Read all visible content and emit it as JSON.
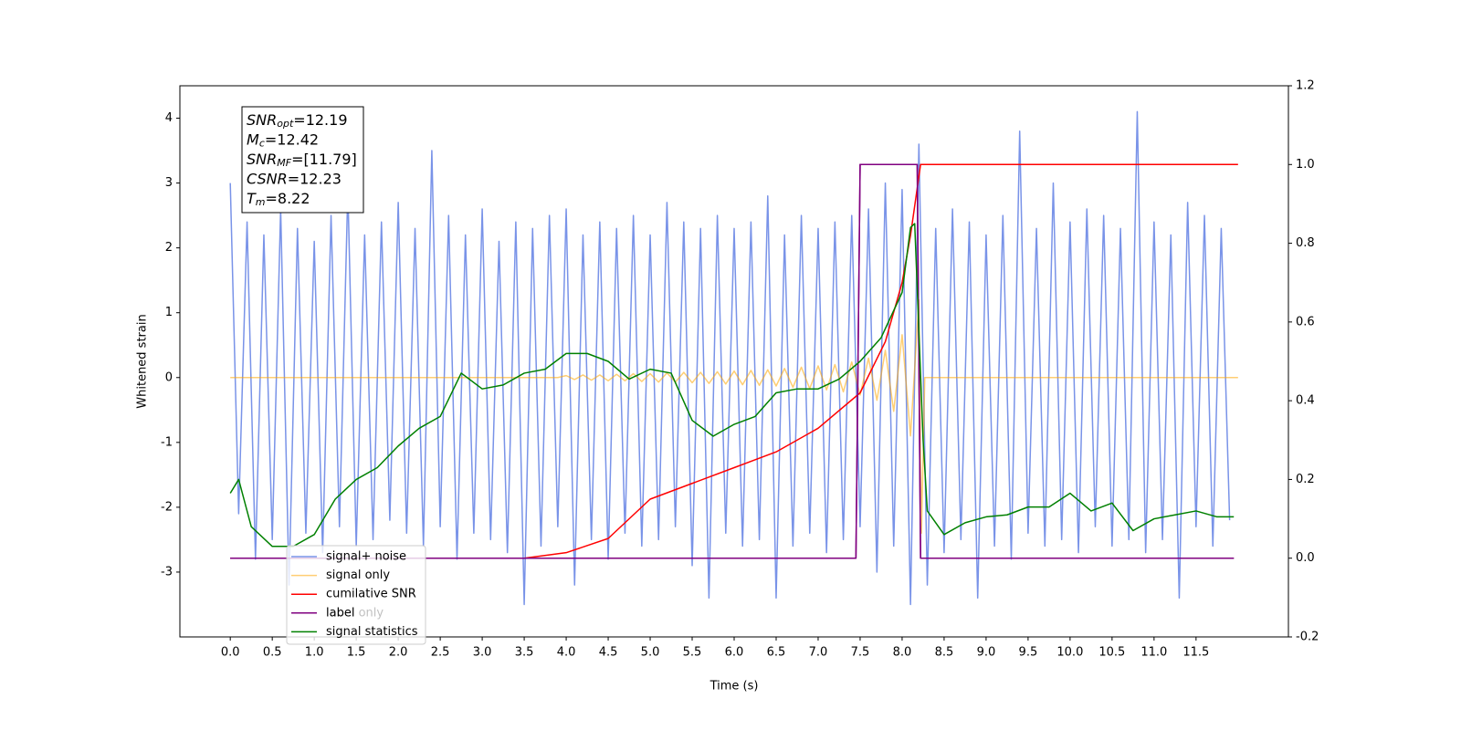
{
  "chart_data": {
    "type": "line",
    "xlabel": "Time (s)",
    "ylabel": "Whitened strain",
    "xlim": [
      -0.6,
      12.6
    ],
    "ylim": [
      -4,
      4.5
    ],
    "y2lim": [
      -0.2,
      1.2
    ],
    "xticks": [
      {
        "value": 0,
        "label": "0.0"
      },
      0.5,
      {
        "value": 1,
        "label": "1.0"
      },
      1.5,
      {
        "value": 2,
        "label": "2.0"
      },
      2.5,
      {
        "value": 3,
        "label": "3.0"
      },
      3.5,
      {
        "value": 4,
        "label": "4.0"
      },
      4.5,
      {
        "value": 5,
        "label": "5.0"
      },
      5.5,
      {
        "value": 6,
        "label": "6.0"
      },
      6.5,
      {
        "value": 7,
        "label": "7.0"
      },
      7.5,
      {
        "value": 8,
        "label": "8.0"
      },
      8.5,
      {
        "value": 9,
        "label": "9.0"
      },
      9.5,
      {
        "value": 10,
        "label": "10.0"
      },
      10.5,
      {
        "value": 11,
        "label": "11.0"
      },
      11.5
    ],
    "yticks": [
      -3,
      -2,
      -1,
      0,
      1,
      2,
      3,
      4
    ],
    "y2ticks": [
      -0.2,
      {
        "value": 0,
        "label": "0.0"
      },
      0.2,
      0.4,
      0.6,
      0.8,
      {
        "value": 1,
        "label": "1.0"
      },
      1.2
    ],
    "legend": "lower left",
    "annotations": [
      {
        "base": "SNR",
        "sub": "opt",
        "text": "=12.19"
      },
      {
        "base": "M",
        "sub": "c",
        "text": "=12.42"
      },
      {
        "base": "SNR",
        "sub": "MF",
        "text": "=[11.79]"
      },
      {
        "base": "CSNR",
        "sub": null,
        "text": "=12.23"
      },
      {
        "base": "T",
        "sub": "m",
        "text": "=8.22"
      }
    ],
    "series": [
      {
        "name": "signal+ noise",
        "color": "#6a87e6",
        "axis": "y",
        "x": [
          0,
          0.1,
          0.2,
          0.3,
          0.4,
          0.5,
          0.6,
          0.7,
          0.8,
          0.9,
          1,
          1.1,
          1.2,
          1.3,
          1.4,
          1.5,
          1.6,
          1.7,
          1.8,
          1.9,
          2,
          2.1,
          2.2,
          2.3,
          2.4,
          2.5,
          2.6,
          2.7,
          2.8,
          2.9,
          3,
          3.1,
          3.2,
          3.3,
          3.4,
          3.5,
          3.6,
          3.7,
          3.8,
          3.9,
          4,
          4.1,
          4.2,
          4.3,
          4.4,
          4.5,
          4.6,
          4.7,
          4.8,
          4.9,
          5,
          5.1,
          5.2,
          5.3,
          5.4,
          5.5,
          5.6,
          5.7,
          5.8,
          5.9,
          6,
          6.1,
          6.2,
          6.3,
          6.4,
          6.5,
          6.6,
          6.7,
          6.8,
          6.9,
          7,
          7.1,
          7.2,
          7.3,
          7.4,
          7.5,
          7.6,
          7.7,
          7.8,
          7.9,
          8,
          8.1,
          8.2,
          8.3,
          8.4,
          8.5,
          8.6,
          8.7,
          8.8,
          8.9,
          9,
          9.1,
          9.2,
          9.3,
          9.4,
          9.5,
          9.6,
          9.7,
          9.8,
          9.9,
          10,
          10.1,
          10.2,
          10.3,
          10.4,
          10.5,
          10.6,
          10.7,
          10.8,
          10.9,
          11,
          11.1,
          11.2,
          11.3,
          11.4,
          11.5,
          11.6,
          11.7,
          11.8,
          11.9
        ],
        "values": [
          3.0,
          -2.1,
          2.4,
          -2.8,
          2.2,
          -2.5,
          2.6,
          -3.2,
          2.3,
          -2.4,
          2.1,
          -2.7,
          2.5,
          -2.3,
          2.9,
          -2.6,
          2.2,
          -2.5,
          2.4,
          -2.2,
          2.7,
          -2.4,
          2.3,
          -2.6,
          3.5,
          -2.3,
          2.5,
          -2.8,
          2.2,
          -2.4,
          2.6,
          -2.5,
          2.1,
          -2.7,
          2.4,
          -3.5,
          2.3,
          -2.6,
          2.5,
          -2.3,
          2.6,
          -3.2,
          2.2,
          -2.5,
          2.4,
          -2.8,
          2.3,
          -2.4,
          2.5,
          -2.6,
          2.2,
          -2.5,
          2.7,
          -2.3,
          2.4,
          -2.9,
          2.3,
          -3.4,
          2.5,
          -2.4,
          2.3,
          -2.6,
          2.4,
          -2.5,
          2.8,
          -3.4,
          2.2,
          -2.6,
          2.5,
          -2.4,
          2.3,
          -2.7,
          2.4,
          -2.5,
          2.5,
          -2.3,
          2.6,
          -3.0,
          3.0,
          -2.6,
          2.9,
          -3.5,
          3.6,
          -3.2,
          2.3,
          -2.7,
          2.6,
          -2.5,
          2.4,
          -3.4,
          2.2,
          -2.6,
          2.5,
          -2.8,
          3.8,
          -2.4,
          2.3,
          -2.6,
          3.0,
          -2.5,
          2.4,
          -2.7,
          2.6,
          -2.3,
          2.5,
          -2.6,
          2.3,
          -2.5,
          4.1,
          -2.7,
          2.4,
          -2.5,
          2.2,
          -3.4,
          2.7,
          -2.3,
          2.5,
          -2.6,
          2.3,
          -2.2
        ]
      },
      {
        "name": "signal only",
        "color": "#ffa500",
        "axis": "y",
        "x": [
          0,
          3.9,
          4,
          4.1,
          4.2,
          4.3,
          4.4,
          4.5,
          4.6,
          4.7,
          4.8,
          4.9,
          5,
          5.1,
          5.2,
          5.3,
          5.4,
          5.5,
          5.6,
          5.7,
          5.8,
          5.9,
          6,
          6.1,
          6.2,
          6.3,
          6.4,
          6.5,
          6.6,
          6.7,
          6.8,
          6.9,
          7,
          7.1,
          7.2,
          7.3,
          7.4,
          7.5,
          7.6,
          7.7,
          7.8,
          7.9,
          8,
          8.1,
          8.2,
          8.23,
          8.27,
          12
        ],
        "values": [
          0,
          0,
          0.03,
          -0.03,
          0.04,
          -0.04,
          0.04,
          -0.05,
          0.05,
          -0.05,
          0.06,
          -0.06,
          0.06,
          -0.07,
          0.07,
          -0.07,
          0.08,
          -0.08,
          0.08,
          -0.09,
          0.09,
          -0.1,
          0.1,
          -0.11,
          0.11,
          -0.12,
          0.12,
          -0.13,
          0.14,
          -0.15,
          0.16,
          -0.17,
          0.18,
          -0.19,
          0.2,
          -0.22,
          0.24,
          -0.27,
          0.3,
          -0.35,
          0.42,
          -0.52,
          0.66,
          -0.9,
          1.2,
          -2.4,
          0,
          0
        ]
      },
      {
        "name": "cumilative SNR",
        "color": "#ff0000",
        "axis": "y2",
        "x": [
          0,
          3.5,
          4,
          4.5,
          5,
          5.5,
          6,
          6.5,
          7,
          7.5,
          7.8,
          8,
          8.1,
          8.2,
          8.22,
          12
        ],
        "values": [
          0,
          0,
          0.014,
          0.05,
          0.15,
          0.19,
          0.23,
          0.27,
          0.33,
          0.42,
          0.55,
          0.7,
          0.82,
          0.97,
          1,
          1
        ]
      },
      {
        "name": "label",
        "color": "#800080",
        "axis": "y2",
        "x": [
          0,
          7.45,
          7.5,
          8.18,
          8.22,
          11.95
        ],
        "values": [
          0,
          0,
          1,
          1,
          0,
          0
        ]
      },
      {
        "name": "label only",
        "color": "#800080",
        "axis": "y2",
        "x": [
          0,
          7.45,
          7.5,
          8.18,
          8.22,
          11.95
        ],
        "values": [
          0,
          0,
          1,
          1,
          0,
          0
        ]
      },
      {
        "name": "signal statistics",
        "color": "#008000",
        "axis": "y2",
        "x": [
          0,
          0.1,
          0.25,
          0.5,
          0.75,
          1,
          1.25,
          1.5,
          1.75,
          2,
          2.25,
          2.5,
          2.75,
          3,
          3.25,
          3.5,
          3.75,
          4,
          4.25,
          4.5,
          4.75,
          5,
          5.25,
          5.5,
          5.75,
          6,
          6.25,
          6.5,
          6.75,
          7,
          7.25,
          7.5,
          7.75,
          8,
          8.1,
          8.15,
          8.25,
          8.3,
          8.5,
          8.75,
          9,
          9.25,
          9.5,
          9.75,
          10,
          10.25,
          10.5,
          10.75,
          11,
          11.25,
          11.5,
          11.75,
          11.95
        ],
        "values": [
          0.165,
          0.2,
          0.08,
          0.03,
          0.03,
          0.06,
          0.15,
          0.2,
          0.23,
          0.285,
          0.33,
          0.36,
          0.47,
          0.43,
          0.44,
          0.47,
          0.48,
          0.52,
          0.52,
          0.5,
          0.455,
          0.48,
          0.47,
          0.35,
          0.31,
          0.34,
          0.36,
          0.42,
          0.43,
          0.43,
          0.455,
          0.5,
          0.56,
          0.675,
          0.84,
          0.85,
          0.3,
          0.12,
          0.06,
          0.09,
          0.105,
          0.11,
          0.13,
          0.13,
          0.165,
          0.12,
          0.14,
          0.07,
          0.1,
          0.11,
          0.12,
          0.105,
          0.105
        ]
      }
    ]
  }
}
